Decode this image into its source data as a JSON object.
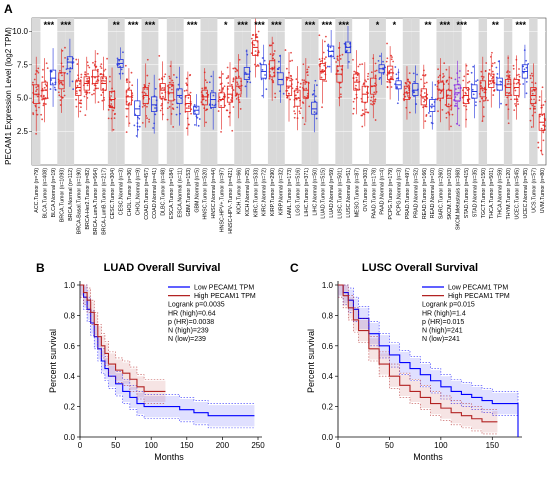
{
  "panels": {
    "a": {
      "letter": "A"
    },
    "b": {
      "letter": "B"
    },
    "c": {
      "letter": "C"
    }
  },
  "colors": {
    "tumor": "#e0201b",
    "normal": "#2233dd",
    "metastasis": "#8a2be2",
    "shade": "#d9d9d9",
    "low": "#0000ff",
    "high": "#b22222"
  },
  "chart_data": [
    {
      "type": "box",
      "title": "",
      "ylabel": "PECAM1 Expression Level (log2 TPM)",
      "yticks": [
        "2.5",
        "5.0",
        "7.5",
        "10.0"
      ],
      "ylim": [
        0,
        11
      ],
      "categories": [
        {
          "label": "ACC.Tumor (n=79)",
          "group": "tumor",
          "median": 5.3,
          "q1": 4.6,
          "q3": 6.0,
          "shade": true,
          "sig": ""
        },
        {
          "label": "BLCA.Tumor (n=408)",
          "group": "tumor",
          "median": 5.6,
          "q1": 5.0,
          "q3": 6.2,
          "shade": false,
          "sig": "***"
        },
        {
          "label": "BLCA.Normal (n=19)",
          "group": "normal",
          "median": 6.5,
          "q1": 6.0,
          "q3": 7.1,
          "shade": false,
          "sig": ""
        },
        {
          "label": "BRCA.Tumor (n=1093)",
          "group": "tumor",
          "median": 6.3,
          "q1": 5.7,
          "q3": 6.9,
          "shade": true,
          "sig": "***"
        },
        {
          "label": "BRCA.Normal (n=112)",
          "group": "normal",
          "median": 7.7,
          "q1": 7.2,
          "q3": 8.1,
          "shade": true,
          "sig": ""
        },
        {
          "label": "BRCA-Basal.Tumor (n=190)",
          "group": "tumor",
          "median": 5.8,
          "q1": 5.2,
          "q3": 6.3,
          "shade": false,
          "sig": ""
        },
        {
          "label": "BRCA-Her2.Tumor (n=82)",
          "group": "tumor",
          "median": 6.1,
          "q1": 5.6,
          "q3": 6.6,
          "shade": false,
          "sig": ""
        },
        {
          "label": "BRCA-LumA.Tumor (n=564)",
          "group": "tumor",
          "median": 6.6,
          "q1": 6.1,
          "q3": 7.1,
          "shade": false,
          "sig": ""
        },
        {
          "label": "BRCA-LumB.Tumor (n=217)",
          "group": "tumor",
          "median": 6.1,
          "q1": 5.6,
          "q3": 6.6,
          "shade": false,
          "sig": ""
        },
        {
          "label": "CESC.Tumor (n=304)",
          "group": "tumor",
          "median": 4.9,
          "q1": 4.3,
          "q3": 5.5,
          "shade": true,
          "sig": "**"
        },
        {
          "label": "CESC.Normal (n=3)",
          "group": "normal",
          "median": 7.6,
          "q1": 7.3,
          "q3": 7.9,
          "shade": true,
          "sig": ""
        },
        {
          "label": "CHOL.Tumor (n=36)",
          "group": "tumor",
          "median": 5.1,
          "q1": 4.5,
          "q3": 5.6,
          "shade": false,
          "sig": "***"
        },
        {
          "label": "CHOL.Normal (n=9)",
          "group": "normal",
          "median": 4.2,
          "q1": 3.7,
          "q3": 4.8,
          "shade": false,
          "sig": ""
        },
        {
          "label": "COAD.Tumor (n=457)",
          "group": "tumor",
          "median": 5.2,
          "q1": 4.6,
          "q3": 5.8,
          "shade": true,
          "sig": "***"
        },
        {
          "label": "COAD.Normal (n=41)",
          "group": "normal",
          "median": 4.5,
          "q1": 4.0,
          "q3": 5.1,
          "shade": true,
          "sig": ""
        },
        {
          "label": "DLBC.Tumor (n=48)",
          "group": "tumor",
          "median": 5.6,
          "q1": 5.0,
          "q3": 6.1,
          "shade": false,
          "sig": ""
        },
        {
          "label": "ESCA.Tumor (n=184)",
          "group": "tumor",
          "median": 5.4,
          "q1": 4.8,
          "q3": 6.0,
          "shade": true,
          "sig": ""
        },
        {
          "label": "ESCA.Normal (n=11)",
          "group": "normal",
          "median": 5.2,
          "q1": 4.6,
          "q3": 5.7,
          "shade": true,
          "sig": ""
        },
        {
          "label": "GBM.Tumor (n=153)",
          "group": "tumor",
          "median": 4.6,
          "q1": 4.0,
          "q3": 5.2,
          "shade": false,
          "sig": "***"
        },
        {
          "label": "GBM.Normal (n=5)",
          "group": "normal",
          "median": 4.1,
          "q1": 3.8,
          "q3": 4.4,
          "shade": false,
          "sig": ""
        },
        {
          "label": "HNSC.Tumor (n=520)",
          "group": "tumor",
          "median": 5.1,
          "q1": 4.5,
          "q3": 5.6,
          "shade": true,
          "sig": ""
        },
        {
          "label": "HNSC.Normal (n=44)",
          "group": "normal",
          "median": 4.9,
          "q1": 4.3,
          "q3": 5.4,
          "shade": true,
          "sig": ""
        },
        {
          "label": "HNSC-HPV+.Tumor (n=97)",
          "group": "tumor",
          "median": 4.9,
          "q1": 4.3,
          "q3": 5.4,
          "shade": false,
          "sig": "*"
        },
        {
          "label": "HNSC-HPV-.Tumor (n=421)",
          "group": "tumor",
          "median": 5.3,
          "q1": 4.7,
          "q3": 5.9,
          "shade": false,
          "sig": ""
        },
        {
          "label": "KICH.Tumor (n=66)",
          "group": "tumor",
          "median": 5.9,
          "q1": 5.3,
          "q3": 6.5,
          "shade": true,
          "sig": "***"
        },
        {
          "label": "KICH.Normal (n=25)",
          "group": "normal",
          "median": 6.8,
          "q1": 6.4,
          "q3": 7.3,
          "shade": true,
          "sig": ""
        },
        {
          "label": "KIRC.Tumor (n=533)",
          "group": "tumor",
          "median": 8.8,
          "q1": 8.2,
          "q3": 9.3,
          "shade": false,
          "sig": "***"
        },
        {
          "label": "KIRC.Normal (n=72)",
          "group": "normal",
          "median": 7.0,
          "q1": 6.5,
          "q3": 7.5,
          "shade": false,
          "sig": ""
        },
        {
          "label": "KIRP.Tumor (n=290)",
          "group": "tumor",
          "median": 7.2,
          "q1": 6.6,
          "q3": 7.8,
          "shade": true,
          "sig": "***"
        },
        {
          "label": "KIRP.Normal (n=32)",
          "group": "normal",
          "median": 6.4,
          "q1": 6.0,
          "q3": 6.9,
          "shade": true,
          "sig": ""
        },
        {
          "label": "LAML.Tumor (n=173)",
          "group": "tumor",
          "median": 5.9,
          "q1": 5.2,
          "q3": 6.5,
          "shade": false,
          "sig": ""
        },
        {
          "label": "LGG.Tumor (n=516)",
          "group": "tumor",
          "median": 5.0,
          "q1": 4.4,
          "q3": 5.6,
          "shade": false,
          "sig": ""
        },
        {
          "label": "LIHC.Tumor (n=371)",
          "group": "tumor",
          "median": 5.6,
          "q1": 5.0,
          "q3": 6.2,
          "shade": true,
          "sig": "***"
        },
        {
          "label": "LIHC.Normal (n=50)",
          "group": "normal",
          "median": 4.2,
          "q1": 3.8,
          "q3": 4.7,
          "shade": true,
          "sig": ""
        },
        {
          "label": "LUAD.Tumor (n=515)",
          "group": "tumor",
          "median": 7.0,
          "q1": 6.4,
          "q3": 7.6,
          "shade": false,
          "sig": "***"
        },
        {
          "label": "LUAD.Normal (n=59)",
          "group": "normal",
          "median": 8.5,
          "q1": 8.1,
          "q3": 8.9,
          "shade": false,
          "sig": ""
        },
        {
          "label": "LUSC.Tumor (n=501)",
          "group": "tumor",
          "median": 6.8,
          "q1": 6.2,
          "q3": 7.4,
          "shade": true,
          "sig": "***"
        },
        {
          "label": "LUSC.Normal (n=51)",
          "group": "normal",
          "median": 8.8,
          "q1": 8.4,
          "q3": 9.2,
          "shade": true,
          "sig": ""
        },
        {
          "label": "MESO.Tumor (n=87)",
          "group": "tumor",
          "median": 6.2,
          "q1": 5.6,
          "q3": 6.8,
          "shade": false,
          "sig": ""
        },
        {
          "label": "OV.Tumor (n=303)",
          "group": "tumor",
          "median": 5.3,
          "q1": 4.7,
          "q3": 5.9,
          "shade": false,
          "sig": ""
        },
        {
          "label": "PAAD.Tumor (n=178)",
          "group": "tumor",
          "median": 5.9,
          "q1": 5.3,
          "q3": 6.5,
          "shade": true,
          "sig": "*"
        },
        {
          "label": "PAAD.Normal (n=4)",
          "group": "normal",
          "median": 7.2,
          "q1": 6.9,
          "q3": 7.5,
          "shade": true,
          "sig": ""
        },
        {
          "label": "PCPG.Tumor (n=179)",
          "group": "tumor",
          "median": 6.9,
          "q1": 6.4,
          "q3": 7.4,
          "shade": false,
          "sig": "*"
        },
        {
          "label": "PCPG.Normal (n=3)",
          "group": "normal",
          "median": 6.0,
          "q1": 5.7,
          "q3": 6.3,
          "shade": false,
          "sig": ""
        },
        {
          "label": "PRAD.Tumor (n=497)",
          "group": "tumor",
          "median": 5.4,
          "q1": 4.9,
          "q3": 5.9,
          "shade": true,
          "sig": ""
        },
        {
          "label": "PRAD.Normal (n=52)",
          "group": "normal",
          "median": 5.6,
          "q1": 5.2,
          "q3": 6.1,
          "shade": true,
          "sig": ""
        },
        {
          "label": "READ.Tumor (n=166)",
          "group": "tumor",
          "median": 5.1,
          "q1": 4.5,
          "q3": 5.7,
          "shade": false,
          "sig": "**"
        },
        {
          "label": "READ.Normal (n=10)",
          "group": "normal",
          "median": 4.4,
          "q1": 4.0,
          "q3": 4.9,
          "shade": false,
          "sig": ""
        },
        {
          "label": "SARC.Tumor (n=260)",
          "group": "tumor",
          "median": 5.6,
          "q1": 5.0,
          "q3": 6.2,
          "shade": true,
          "sig": "***"
        },
        {
          "label": "SKCM.Tumor (n=103)",
          "group": "tumor",
          "median": 5.0,
          "q1": 4.4,
          "q3": 5.6,
          "shade": true,
          "sig": ""
        },
        {
          "label": "SKCM.Metastasis (n=368)",
          "group": "metastasis",
          "median": 5.4,
          "q1": 4.8,
          "q3": 6.0,
          "shade": true,
          "sig": "***"
        },
        {
          "label": "STAD.Tumor (n=415)",
          "group": "tumor",
          "median": 5.2,
          "q1": 4.6,
          "q3": 5.8,
          "shade": false,
          "sig": ""
        },
        {
          "label": "STAD.Normal (n=35)",
          "group": "normal",
          "median": 5.5,
          "q1": 5.0,
          "q3": 6.0,
          "shade": false,
          "sig": ""
        },
        {
          "label": "TGCT.Tumor (n=150)",
          "group": "tumor",
          "median": 5.7,
          "q1": 5.1,
          "q3": 6.3,
          "shade": true,
          "sig": ""
        },
        {
          "label": "THCA.Tumor (n=501)",
          "group": "tumor",
          "median": 6.3,
          "q1": 5.8,
          "q3": 6.8,
          "shade": false,
          "sig": "**"
        },
        {
          "label": "THCA.Normal (n=59)",
          "group": "normal",
          "median": 6.0,
          "q1": 5.6,
          "q3": 6.5,
          "shade": false,
          "sig": ""
        },
        {
          "label": "THYM.Tumor (n=120)",
          "group": "tumor",
          "median": 5.8,
          "q1": 5.2,
          "q3": 6.4,
          "shade": true,
          "sig": ""
        },
        {
          "label": "UCEC.Tumor (n=545)",
          "group": "tumor",
          "median": 5.8,
          "q1": 5.2,
          "q3": 6.4,
          "shade": false,
          "sig": "***"
        },
        {
          "label": "UCEC.Normal (n=35)",
          "group": "normal",
          "median": 7.0,
          "q1": 6.5,
          "q3": 7.5,
          "shade": false,
          "sig": ""
        },
        {
          "label": "UCS.Tumor (n=57)",
          "group": "tumor",
          "median": 5.2,
          "q1": 4.6,
          "q3": 5.8,
          "shade": true,
          "sig": ""
        },
        {
          "label": "UVM.Tumor (n=80)",
          "group": "tumor",
          "median": 3.2,
          "q1": 2.6,
          "q3": 3.8,
          "shade": false,
          "sig": ""
        }
      ]
    },
    {
      "type": "line",
      "title": "LUAD Overall Survival",
      "xlabel": "Months",
      "ylabel": "Percent survival",
      "xlim": [
        0,
        250
      ],
      "ylim": [
        0,
        1.0
      ],
      "xticks": [
        "0",
        "50",
        "100",
        "150",
        "200",
        "250"
      ],
      "yticks": [
        "0.0",
        "0.2",
        "0.4",
        "0.6",
        "0.8",
        "1.0"
      ],
      "legend_position": "top-right",
      "legend": [
        "Low PECAM1 TPM",
        "High PECAM1 TPM",
        "Logrank p=0.0035",
        "HR (high)=0.64",
        "p (HR)=0.0038",
        "N (high)=239",
        "N (low)=239"
      ],
      "series": [
        {
          "name": "Low PECAM1 TPM",
          "color": "low",
          "x": [
            0,
            5,
            10,
            15,
            20,
            25,
            30,
            35,
            40,
            50,
            60,
            70,
            80,
            90,
            100,
            120,
            140,
            160,
            180,
            200,
            225,
            245
          ],
          "y": [
            1.0,
            0.92,
            0.84,
            0.75,
            0.66,
            0.58,
            0.5,
            0.45,
            0.4,
            0.35,
            0.3,
            0.26,
            0.22,
            0.2,
            0.2,
            0.2,
            0.18,
            0.16,
            0.14,
            0.14,
            0.14,
            0.14
          ]
        },
        {
          "name": "High PECAM1 TPM",
          "color": "high",
          "x": [
            0,
            5,
            10,
            15,
            20,
            25,
            30,
            35,
            40,
            50,
            60,
            70,
            80,
            90,
            100,
            110,
            120
          ],
          "y": [
            1.0,
            0.95,
            0.9,
            0.82,
            0.74,
            0.66,
            0.6,
            0.55,
            0.48,
            0.44,
            0.42,
            0.38,
            0.33,
            0.3,
            0.3,
            0.3,
            0.3
          ]
        }
      ]
    },
    {
      "type": "line",
      "title": "LUSC Overall Survival",
      "xlabel": "Months",
      "ylabel": "Percent survival",
      "xlim": [
        0,
        175
      ],
      "ylim": [
        0,
        1.0
      ],
      "xticks": [
        "0",
        "50",
        "100",
        "150"
      ],
      "yticks": [
        "0.0",
        "0.2",
        "0.4",
        "0.6",
        "0.8",
        "1.0"
      ],
      "legend_position": "top-right",
      "legend": [
        "Low PECAM1 TPM",
        "High PECAM1 TPM",
        "Logrank p=0.015",
        "HR (high)=1.4",
        "p (HR)=0.015",
        "N (high)=241",
        "N (low)=241"
      ],
      "series": [
        {
          "name": "Low PECAM1 TPM",
          "color": "low",
          "x": [
            0,
            5,
            10,
            15,
            20,
            30,
            40,
            50,
            60,
            70,
            80,
            90,
            100,
            110,
            120,
            130,
            140,
            150,
            160,
            170,
            175
          ],
          "y": [
            1.0,
            0.95,
            0.9,
            0.84,
            0.78,
            0.68,
            0.6,
            0.54,
            0.49,
            0.45,
            0.41,
            0.37,
            0.33,
            0.3,
            0.28,
            0.26,
            0.24,
            0.22,
            0.22,
            0.22,
            0.0
          ]
        },
        {
          "name": "High PECAM1 TPM",
          "color": "high",
          "x": [
            0,
            5,
            10,
            15,
            20,
            30,
            40,
            50,
            60,
            70,
            80,
            90,
            100,
            110,
            120,
            130,
            140,
            155
          ],
          "y": [
            1.0,
            0.93,
            0.85,
            0.77,
            0.7,
            0.58,
            0.48,
            0.4,
            0.34,
            0.3,
            0.26,
            0.22,
            0.19,
            0.16,
            0.14,
            0.12,
            0.1,
            0.1
          ]
        }
      ]
    }
  ]
}
